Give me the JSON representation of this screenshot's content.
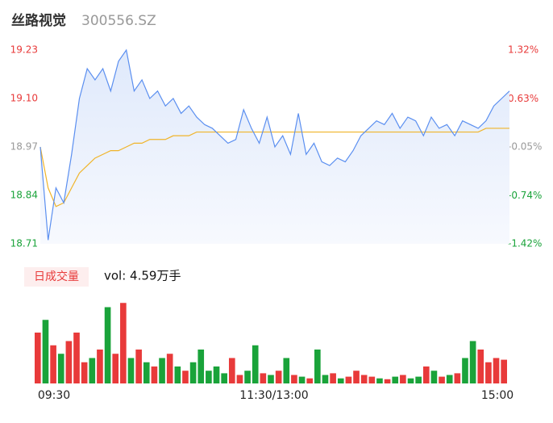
{
  "chart_data": {
    "type": "intraday",
    "title": "丝路视觉",
    "subtitle": "300556.SZ",
    "price": {
      "color": "#5b8ff0",
      "values": [
        18.97,
        18.72,
        18.86,
        18.82,
        18.95,
        19.1,
        19.18,
        19.15,
        19.18,
        19.12,
        19.2,
        19.23,
        19.12,
        19.15,
        19.1,
        19.12,
        19.08,
        19.1,
        19.06,
        19.08,
        19.05,
        19.03,
        19.02,
        19.0,
        18.98,
        18.99,
        19.07,
        19.02,
        18.98,
        19.05,
        18.97,
        19.0,
        18.95,
        19.06,
        18.95,
        18.98,
        18.93,
        18.92,
        18.94,
        18.93,
        18.96,
        19.0,
        19.02,
        19.04,
        19.03,
        19.06,
        19.02,
        19.05,
        19.04,
        19.0,
        19.05,
        19.02,
        19.03,
        19.0,
        19.04,
        19.03,
        19.02,
        19.04,
        19.08,
        19.1,
        19.12
      ]
    },
    "average": {
      "color": "#f0b429",
      "values": [
        18.97,
        18.86,
        18.81,
        18.82,
        18.86,
        18.9,
        18.92,
        18.94,
        18.95,
        18.96,
        18.96,
        18.97,
        18.98,
        18.98,
        18.99,
        18.99,
        18.99,
        19.0,
        19.0,
        19.0,
        19.01,
        19.01,
        19.01,
        19.01,
        19.01,
        19.01,
        19.01,
        19.01,
        19.01,
        19.01,
        19.01,
        19.01,
        19.01,
        19.01,
        19.01,
        19.01,
        19.01,
        19.01,
        19.01,
        19.01,
        19.01,
        19.01,
        19.01,
        19.01,
        19.01,
        19.01,
        19.01,
        19.01,
        19.01,
        19.01,
        19.01,
        19.01,
        19.01,
        19.01,
        19.01,
        19.01,
        19.01,
        19.02,
        19.02,
        19.02,
        19.02
      ]
    },
    "ylim": [
      18.71,
      19.23
    ],
    "yticks": [
      18.71,
      18.84,
      18.97,
      {
        "value": 19.1,
        "label": "19.10"
      },
      19.23
    ],
    "y2lim": [
      -1.42,
      1.32
    ],
    "y2ticks": [
      {
        "value": -1.42,
        "label": "-1.42%"
      },
      {
        "value": -0.74,
        "label": "-0.74%"
      },
      {
        "value": -0.05,
        "label": "-0.05%"
      },
      {
        "value": 0.63,
        "label": "0.63%"
      },
      {
        "value": 1.32,
        "label": "1.32%"
      }
    ],
    "xticks": [
      "09:30",
      "11:30/13:00",
      "15:00"
    ],
    "volume_label": "日成交量",
    "volume_total": "vol: 4.59万手",
    "volume": {
      "values": [
        600,
        750,
        450,
        350,
        500,
        600,
        250,
        300,
        400,
        900,
        350,
        950,
        300,
        400,
        250,
        200,
        300,
        350,
        200,
        150,
        250,
        400,
        150,
        200,
        120,
        300,
        100,
        150,
        450,
        120,
        100,
        150,
        300,
        100,
        80,
        60,
        400,
        100,
        120,
        60,
        80,
        150,
        100,
        80,
        60,
        50,
        80,
        100,
        60,
        80,
        200,
        150,
        80,
        100,
        120,
        300,
        500,
        400,
        250,
        300,
        280
      ],
      "ylim": [
        0,
        1000
      ]
    },
    "up_color": "#e83a3a",
    "down_color": "#1aa33a",
    "flat_color": "#999999"
  }
}
